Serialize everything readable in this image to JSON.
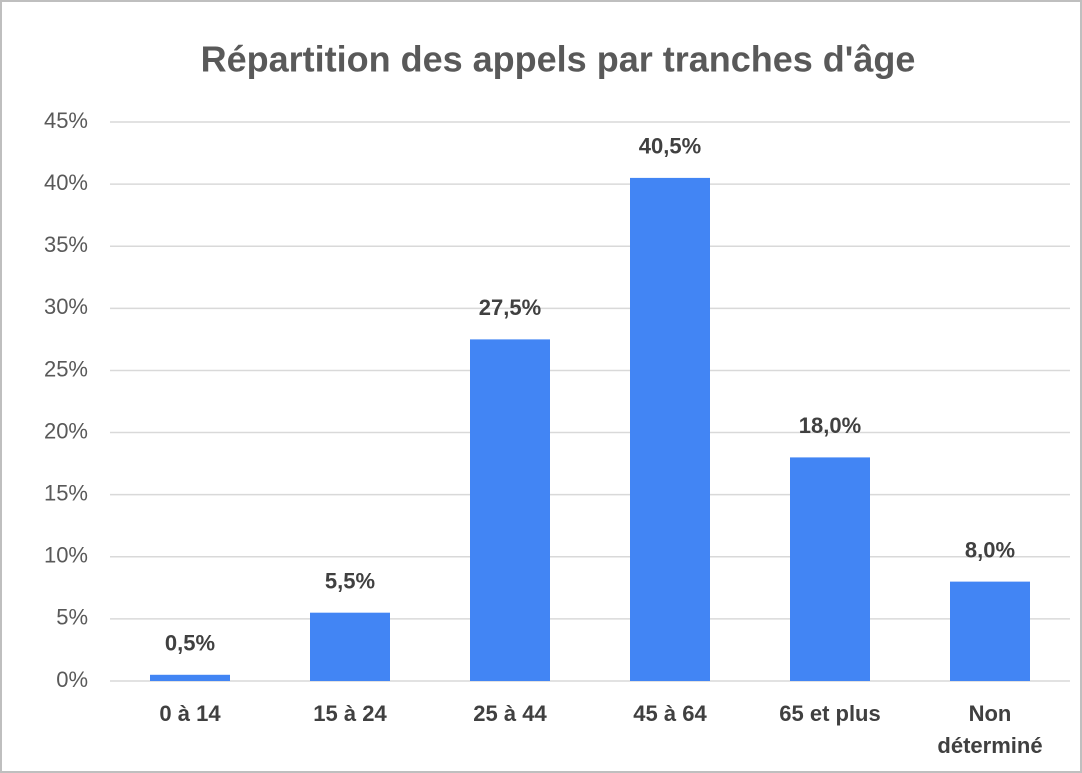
{
  "chart_data": {
    "type": "bar",
    "title": "Répartition des appels par tranches d'âge",
    "categories": [
      "0 à 14",
      "15 à 24",
      "25 à 44",
      "45 à 64",
      "65 et plus",
      "Non déterminé"
    ],
    "values": [
      0.5,
      5.5,
      27.5,
      40.5,
      18.0,
      8.0
    ],
    "value_labels": [
      "0,5%",
      "5,5%",
      "27,5%",
      "40,5%",
      "18,0%",
      "8,0%"
    ],
    "color": "#4285f4",
    "ylim": [
      0,
      45
    ],
    "yticks": [
      {
        "value": 0,
        "label": "0%"
      },
      {
        "value": 5,
        "label": "5%"
      },
      {
        "value": 10,
        "label": "10%"
      },
      {
        "value": 15,
        "label": "15%"
      },
      {
        "value": 20,
        "label": "20%"
      },
      {
        "value": 25,
        "label": "25%"
      },
      {
        "value": 30,
        "label": "30%"
      },
      {
        "value": 35,
        "label": "35%"
      },
      {
        "value": 40,
        "label": "40%"
      },
      {
        "value": 45,
        "label": "45%"
      }
    ],
    "grid": true
  }
}
